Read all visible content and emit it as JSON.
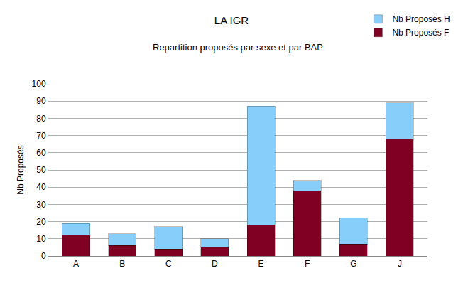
{
  "chart_data": {
    "type": "bar",
    "title": "LA IGR",
    "subtitle": "Repartition proposés par sexe et par BAP",
    "y_label": "Nb Proposés",
    "categories": [
      "A",
      "B",
      "C",
      "D",
      "E",
      "F",
      "G",
      "J"
    ],
    "series": [
      {
        "name": "Nb Proposés F",
        "color": "#7f0022",
        "values": [
          12,
          6,
          4,
          5,
          18,
          38,
          7,
          68
        ]
      },
      {
        "name": "Nb Proposés H",
        "color": "#87cefa",
        "values": [
          7,
          7,
          13,
          5,
          69,
          6,
          15,
          21
        ]
      }
    ],
    "stacked": true,
    "ylim": [
      0,
      100
    ],
    "yticks": [
      0,
      10,
      20,
      30,
      40,
      50,
      60,
      70,
      80,
      90,
      100
    ],
    "grid": true,
    "legend": "top right"
  }
}
